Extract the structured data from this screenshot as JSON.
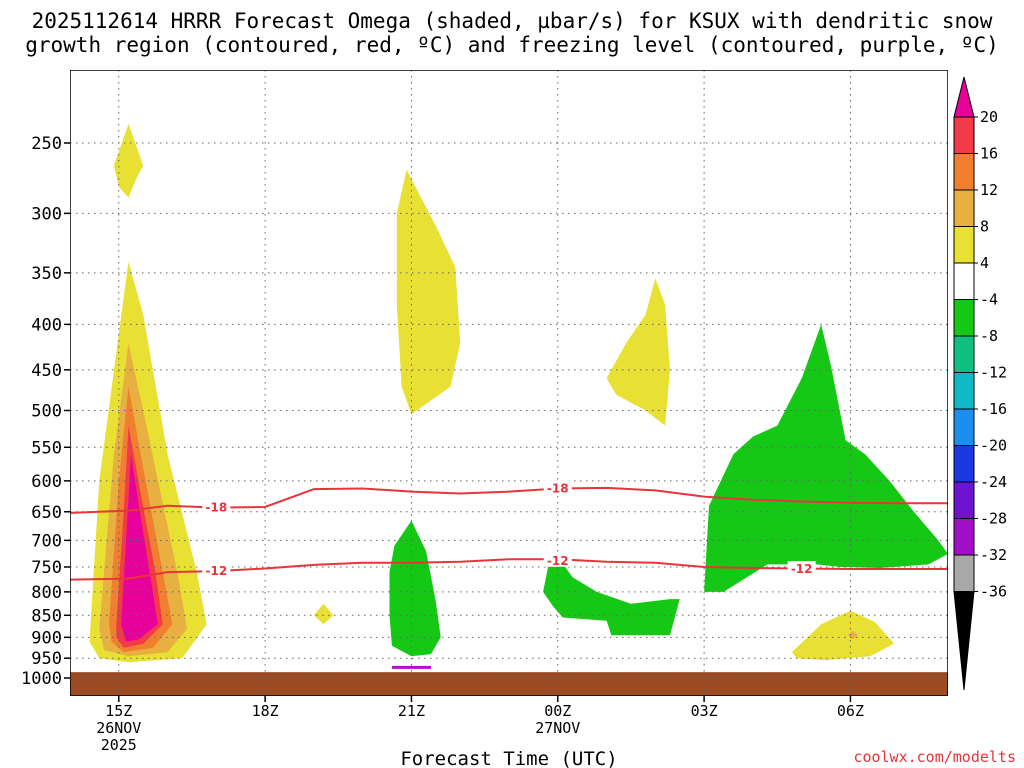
{
  "title_line1": "2025112614 HRRR Forecast Omega (shaded, µbar/s) for KSUX with dendritic snow",
  "title_line2": "growth region (contoured, red, ºC) and freezing level (contoured, purple, ºC)",
  "credit": "coolwx.com/modelts",
  "chart_data": {
    "type": "heatmap",
    "title": "2025112614 HRRR Forecast Omega (shaded, µbar/s) for KSUX with dendritic snow growth region (contoured, red, ºC) and freezing level (contoured, purple, ºC)",
    "xlabel": "Forecast Time (UTC)",
    "ylabel": "",
    "x_ticks": [
      {
        "hour": 15,
        "label": "15Z",
        "date": "26NOV",
        "year": "2025"
      },
      {
        "hour": 18,
        "label": "18Z"
      },
      {
        "hour": 21,
        "label": "21Z"
      },
      {
        "hour": 24,
        "label": "00Z",
        "date": "27NOV"
      },
      {
        "hour": 27,
        "label": "03Z"
      },
      {
        "hour": 30,
        "label": "06Z"
      }
    ],
    "xlim": [
      14,
      32
    ],
    "y_ticks": [
      250,
      300,
      350,
      400,
      450,
      500,
      550,
      600,
      650,
      700,
      750,
      800,
      850,
      900,
      950,
      1000
    ],
    "ylim": [
      1000,
      200
    ],
    "y_scale": "log-pressure",
    "grid": true,
    "colorbar": {
      "labels": [
        "20",
        "16",
        "12",
        "8",
        "4",
        "-4",
        "-8",
        "-12",
        "-16",
        "-20",
        "-24",
        "-28",
        "-32",
        "-36"
      ],
      "colors": [
        "#e8009a",
        "#f23a48",
        "#f08030",
        "#e8b040",
        "#e8e032",
        "#ffffff",
        "#16c816",
        "#10c082",
        "#10b8c8",
        "#1c8ef0",
        "#1c38e0",
        "#6c14d0",
        "#a010c8",
        "#a8a8a8",
        "#000000"
      ]
    },
    "omega_regions": [
      {
        "level": "4 to 8",
        "color": "#e8e032",
        "shape": [
          [
            14.4,
            910
          ],
          [
            14.6,
            600
          ],
          [
            15.0,
            410
          ],
          [
            15.2,
            340
          ],
          [
            15.5,
            390
          ],
          [
            16.0,
            560
          ],
          [
            16.6,
            760
          ],
          [
            16.8,
            870
          ],
          [
            16.3,
            950
          ],
          [
            15.2,
            960
          ],
          [
            14.6,
            950
          ]
        ]
      },
      {
        "level": "8 to 12",
        "color": "#e8b040",
        "shape": [
          [
            14.6,
            880
          ],
          [
            14.9,
            560
          ],
          [
            15.2,
            420
          ],
          [
            15.6,
            530
          ],
          [
            16.2,
            760
          ],
          [
            16.4,
            880
          ],
          [
            16.0,
            935
          ],
          [
            15.2,
            945
          ],
          [
            14.7,
            930
          ]
        ]
      },
      {
        "level": "12 to 16",
        "color": "#f08030",
        "shape": [
          [
            14.8,
            870
          ],
          [
            15.0,
            600
          ],
          [
            15.2,
            470
          ],
          [
            15.5,
            580
          ],
          [
            15.9,
            760
          ],
          [
            16.1,
            870
          ],
          [
            15.7,
            925
          ],
          [
            15.1,
            935
          ],
          [
            14.85,
            910
          ]
        ]
      },
      {
        "level": "16 to 20",
        "color": "#f23a48",
        "shape": [
          [
            14.95,
            870
          ],
          [
            15.1,
            650
          ],
          [
            15.2,
            520
          ],
          [
            15.45,
            620
          ],
          [
            15.75,
            760
          ],
          [
            15.9,
            870
          ],
          [
            15.5,
            915
          ],
          [
            15.1,
            925
          ],
          [
            14.95,
            900
          ]
        ]
      },
      {
        "level": ">20",
        "color": "#e8009a",
        "shape": [
          [
            15.05,
            870
          ],
          [
            15.15,
            700
          ],
          [
            15.25,
            560
          ],
          [
            15.45,
            660
          ],
          [
            15.65,
            770
          ],
          [
            15.8,
            870
          ],
          [
            15.4,
            905
          ],
          [
            15.15,
            910
          ]
        ]
      },
      {
        "level": "4 to 8",
        "color": "#e8e032",
        "shape": [
          [
            14.9,
            265
          ],
          [
            15.2,
            238
          ],
          [
            15.5,
            265
          ],
          [
            15.35,
            275
          ],
          [
            15.2,
            288
          ],
          [
            15.0,
            280
          ]
        ]
      },
      {
        "level": "4 to 8",
        "color": "#e8e032",
        "shape": [
          [
            19.0,
            850
          ],
          [
            19.2,
            825
          ],
          [
            19.4,
            850
          ],
          [
            19.2,
            870
          ]
        ]
      },
      {
        "level": "4 to 8",
        "color": "#e8e032",
        "shape": [
          [
            20.7,
            300
          ],
          [
            20.9,
            268
          ],
          [
            21.5,
            310
          ],
          [
            21.9,
            345
          ],
          [
            22.0,
            420
          ],
          [
            21.8,
            470
          ],
          [
            21.0,
            505
          ],
          [
            20.8,
            470
          ],
          [
            20.7,
            380
          ]
        ]
      },
      {
        "level": "4 to 8",
        "color": "#e8e032",
        "shape": [
          [
            25.0,
            460
          ],
          [
            25.4,
            420
          ],
          [
            25.8,
            390
          ],
          [
            26.0,
            355
          ],
          [
            26.2,
            380
          ],
          [
            26.3,
            450
          ],
          [
            26.2,
            520
          ],
          [
            25.8,
            500
          ],
          [
            25.2,
            480
          ]
        ]
      },
      {
        "level": "4 to 8",
        "color": "#e8e032",
        "shape": [
          [
            28.8,
            935
          ],
          [
            29.4,
            870
          ],
          [
            30.0,
            840
          ],
          [
            30.5,
            865
          ],
          [
            30.9,
            915
          ],
          [
            30.4,
            945
          ],
          [
            29.5,
            955
          ],
          [
            28.9,
            950
          ]
        ]
      },
      {
        "level": "8 to 12",
        "color": "#e8b040",
        "shape": [
          [
            29.95,
            895
          ],
          [
            30.05,
            885
          ],
          [
            30.15,
            895
          ],
          [
            30.05,
            905
          ]
        ]
      },
      {
        "level": "-4 to -8",
        "color": "#16c816",
        "shape": [
          [
            20.55,
            760
          ],
          [
            20.65,
            710
          ],
          [
            21.0,
            665
          ],
          [
            21.3,
            720
          ],
          [
            21.5,
            820
          ],
          [
            21.6,
            900
          ],
          [
            21.4,
            940
          ],
          [
            21.0,
            945
          ],
          [
            20.6,
            920
          ],
          [
            20.55,
            850
          ]
        ]
      },
      {
        "level": "-4 to -8",
        "color": "#16c816",
        "shape": [
          [
            23.8,
            750
          ],
          [
            24.0,
            730
          ],
          [
            24.3,
            770
          ],
          [
            24.8,
            800
          ],
          [
            25.5,
            825
          ],
          [
            26.3,
            815
          ],
          [
            26.5,
            815
          ],
          [
            26.3,
            895
          ],
          [
            25.1,
            895
          ],
          [
            25.0,
            862
          ],
          [
            24.1,
            855
          ],
          [
            23.9,
            830
          ],
          [
            23.7,
            800
          ]
        ]
      },
      {
        "level": "-4 to -8",
        "color": "#16c816",
        "shape": [
          [
            27.0,
            800
          ],
          [
            27.1,
            640
          ],
          [
            27.6,
            560
          ],
          [
            28.0,
            535
          ],
          [
            28.5,
            520
          ],
          [
            29.0,
            460
          ],
          [
            29.4,
            400
          ],
          [
            29.6,
            445
          ],
          [
            29.9,
            540
          ],
          [
            30.3,
            560
          ],
          [
            30.8,
            600
          ],
          [
            31.3,
            650
          ],
          [
            31.8,
            700
          ],
          [
            32.0,
            725
          ],
          [
            31.6,
            745
          ],
          [
            30.6,
            752
          ],
          [
            29.8,
            750
          ],
          [
            29.3,
            745
          ],
          [
            28.3,
            745
          ],
          [
            27.8,
            775
          ],
          [
            27.4,
            800
          ]
        ]
      }
    ],
    "dgz_contours": [
      {
        "label": "-18",
        "x": [
          14.0,
          15.2,
          16.0,
          17.0,
          18.0,
          19.0,
          20.0,
          21.0,
          22.0,
          23.0,
          24.0,
          25.0,
          26.0,
          27.0,
          28.0,
          29.0,
          30.0,
          31.0,
          32.0
        ],
        "y": [
          652,
          648,
          640,
          643,
          642,
          613,
          612,
          617,
          620,
          617,
          612,
          611,
          615,
          625,
          630,
          633,
          635,
          636,
          636
        ]
      },
      {
        "label": "-12",
        "x": [
          14.0,
          15.2,
          16.0,
          17.0,
          18.0,
          19.0,
          20.0,
          21.0,
          22.0,
          23.0,
          24.0,
          25.0,
          26.0,
          27.0,
          28.0,
          29.0,
          30.0,
          31.0,
          32.0
        ],
        "y": [
          775,
          773,
          760,
          758,
          753,
          746,
          742,
          742,
          740,
          735,
          735,
          740,
          742,
          750,
          752,
          753,
          754,
          754,
          754
        ]
      }
    ],
    "labeled_contour_positions": [
      {
        "label": "-18",
        "x": 17.0,
        "y": 643
      },
      {
        "label": "-18",
        "x": 24.0,
        "y": 612
      },
      {
        "label": "-12",
        "x": 17.0,
        "y": 758
      },
      {
        "label": "-12",
        "x": 24.0,
        "y": 738
      },
      {
        "label": "-12",
        "x": 29.0,
        "y": 754
      }
    ],
    "freezing_level": [
      {
        "x_start": 20.6,
        "x_end": 21.4,
        "y": 973
      }
    ],
    "ground_pressure": 985
  }
}
